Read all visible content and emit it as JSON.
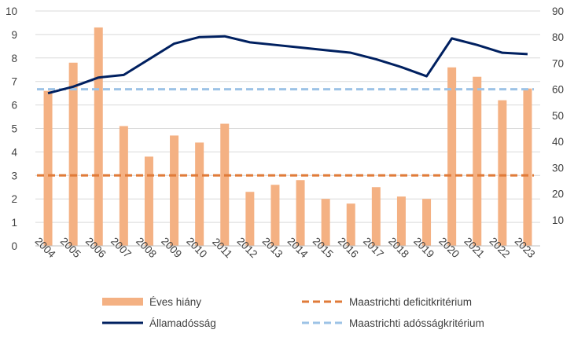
{
  "colors": {
    "bar": "#F4B183",
    "debt_line": "#002060",
    "deficit_criterion": "#E07B39",
    "debt_criterion": "#9DC3E6",
    "gridline": "#D9D9D9",
    "axis": "#BFBFBF"
  },
  "chart_data": {
    "type": "bar",
    "categories": [
      "2004",
      "2005",
      "2006",
      "2007",
      "2008",
      "2009",
      "2010",
      "2011",
      "2012",
      "2013",
      "2014",
      "2015",
      "2016",
      "2017",
      "2018",
      "2019",
      "2020",
      "2021",
      "2022",
      "2023"
    ],
    "y_left": {
      "ylim": [
        0,
        10
      ],
      "ticks": [
        "0",
        "1",
        "2",
        "3",
        "4",
        "5",
        "6",
        "7",
        "8",
        "9",
        "10"
      ]
    },
    "y_right": {
      "ylim": [
        0,
        90
      ],
      "ticks": [
        "10",
        "20",
        "30",
        "40",
        "50",
        "60",
        "70",
        "80",
        "90"
      ]
    },
    "grid": true,
    "legend_position": "bottom",
    "series": [
      {
        "name": "Éves hiány",
        "type": "bar",
        "axis": "left",
        "values": [
          6.6,
          7.8,
          9.3,
          5.1,
          3.8,
          4.7,
          4.4,
          5.2,
          2.3,
          2.6,
          2.8,
          2.0,
          1.8,
          2.5,
          2.1,
          2.0,
          7.6,
          7.2,
          6.2,
          6.7
        ]
      },
      {
        "name": "Maastrichti deficitkritérium",
        "type": "line",
        "style": "dashed",
        "axis": "left",
        "values": [
          3,
          3,
          3,
          3,
          3,
          3,
          3,
          3,
          3,
          3,
          3,
          3,
          3,
          3,
          3,
          3,
          3,
          3,
          3,
          3
        ]
      },
      {
        "name": "Államadósság",
        "type": "line",
        "axis": "right",
        "values": [
          58.5,
          61,
          64.5,
          65.5,
          71.5,
          77.5,
          80,
          80.3,
          78,
          77,
          76,
          75,
          74,
          71.5,
          68.5,
          65,
          79.5,
          77,
          74,
          73.5
        ]
      },
      {
        "name": "Maastrichti adósságkritérium",
        "type": "line",
        "style": "dashed",
        "axis": "right",
        "values": [
          60,
          60,
          60,
          60,
          60,
          60,
          60,
          60,
          60,
          60,
          60,
          60,
          60,
          60,
          60,
          60,
          60,
          60,
          60,
          60
        ]
      }
    ]
  }
}
